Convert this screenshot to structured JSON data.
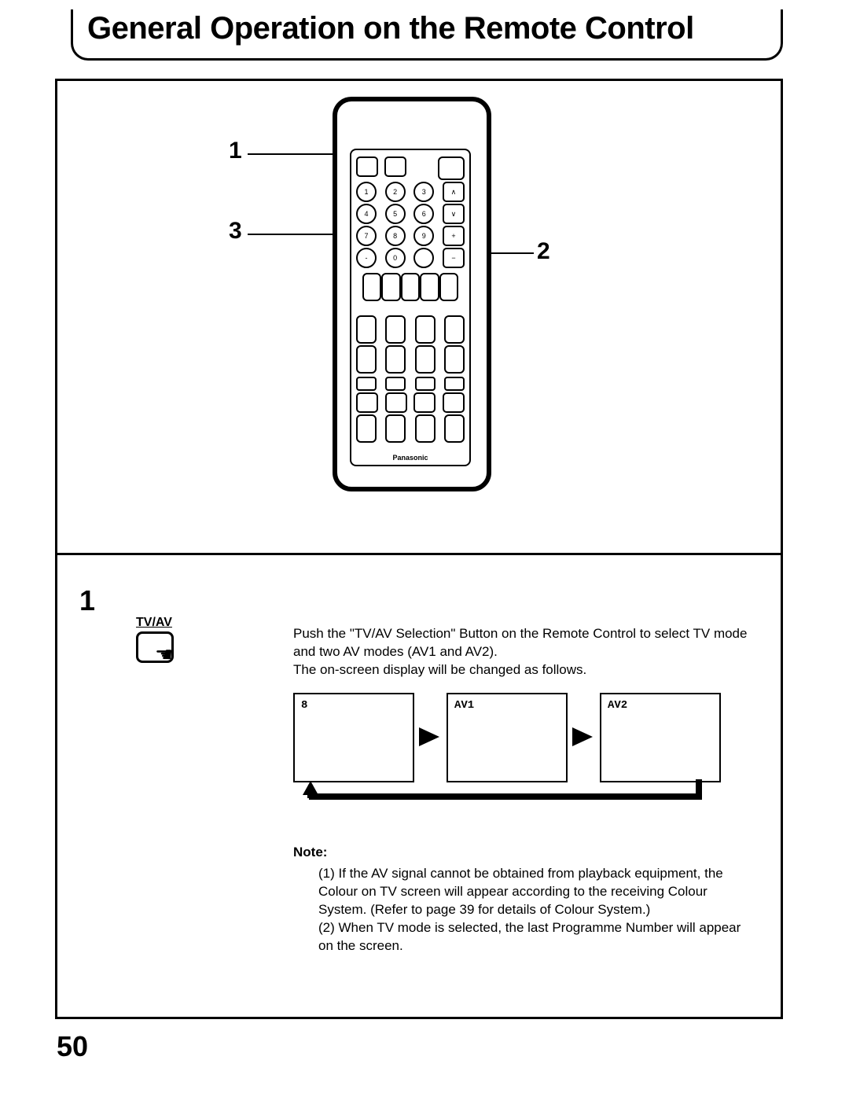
{
  "title": "General Operation on the Remote Control",
  "page_number": "50",
  "callouts": {
    "c1": "1",
    "c2": "2",
    "c3": "3"
  },
  "remote": {
    "numpad": [
      "1",
      "2",
      "3",
      "4",
      "5",
      "6",
      "7",
      "8",
      "9",
      "0"
    ],
    "brand": "Panasonic"
  },
  "step": {
    "num": "1",
    "button_label": "TV/AV",
    "instruction": "Push the \"TV/AV Selection\" Button on the Remote Control to select TV mode and two AV modes (AV1 and AV2).\nThe on-screen display will be changed as follows.",
    "screens": [
      "8",
      "AV1",
      "AV2"
    ]
  },
  "note": {
    "title": "Note:",
    "items": [
      "(1) If the AV signal cannot be obtained from playback equipment, the Colour on TV screen will appear according to the receiving Colour System. (Refer to page 39 for details of Colour System.)",
      "(2) When TV mode is selected, the last Programme Number will appear on the screen."
    ]
  }
}
